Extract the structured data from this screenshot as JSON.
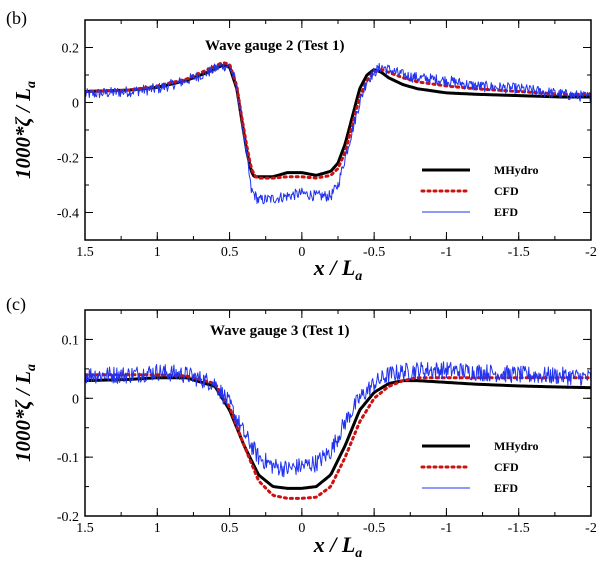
{
  "chart_data": [
    {
      "type": "line",
      "panel_label": "(b)",
      "title": "Wave gauge 2 (Test 1)",
      "xlabel_main": "x / L",
      "xlabel_sub": "a",
      "ylabel_main": "1000*ζ / L",
      "ylabel_sub": "a",
      "xlim": [
        1.5,
        -2
      ],
      "ylim": [
        -0.5,
        0.3
      ],
      "x_ticks": [
        1.5,
        1,
        0.5,
        0,
        -0.5,
        -1,
        -1.5,
        -2
      ],
      "x_tick_labels": [
        "1.5",
        "1",
        "0.5",
        "0",
        "-0.5",
        "-1",
        "-1.5",
        "-2"
      ],
      "y_ticks": [
        -0.4,
        -0.2,
        0,
        0.2
      ],
      "y_tick_labels": [
        "-0.4",
        "-0.2",
        "0",
        "0.2"
      ],
      "legend_position": "lower-right",
      "series": [
        {
          "name": "MHydro",
          "color": "#000000",
          "style": "solid",
          "width": 3,
          "x": [
            1.5,
            1.2,
            1.0,
            0.8,
            0.65,
            0.55,
            0.5,
            0.45,
            0.42,
            0.38,
            0.35,
            0.33,
            0.3,
            0.2,
            0.1,
            0.0,
            -0.1,
            -0.2,
            -0.25,
            -0.3,
            -0.35,
            -0.4,
            -0.45,
            -0.5,
            -0.55,
            -0.6,
            -0.7,
            -0.8,
            -1.0,
            -1.2,
            -1.5,
            -1.8,
            -2.0
          ],
          "y": [
            0.04,
            0.045,
            0.055,
            0.08,
            0.11,
            0.135,
            0.13,
            0.05,
            -0.05,
            -0.18,
            -0.25,
            -0.27,
            -0.27,
            -0.27,
            -0.255,
            -0.255,
            -0.265,
            -0.25,
            -0.22,
            -0.15,
            -0.05,
            0.05,
            0.1,
            0.12,
            0.11,
            0.09,
            0.065,
            0.05,
            0.035,
            0.03,
            0.025,
            0.02,
            0.02
          ]
        },
        {
          "name": "CFD",
          "color": "#cc1111",
          "style": "dotted",
          "width": 3,
          "x": [
            1.5,
            1.2,
            1.0,
            0.8,
            0.65,
            0.55,
            0.5,
            0.45,
            0.42,
            0.38,
            0.35,
            0.32,
            0.3,
            0.2,
            0.1,
            0.0,
            -0.1,
            -0.2,
            -0.25,
            -0.3,
            -0.35,
            -0.4,
            -0.45,
            -0.5,
            -0.55,
            -0.6,
            -0.7,
            -0.8,
            -1.0,
            -1.2,
            -1.5,
            -1.8,
            -2.0
          ],
          "y": [
            0.04,
            0.045,
            0.06,
            0.085,
            0.12,
            0.145,
            0.14,
            0.06,
            -0.04,
            -0.16,
            -0.24,
            -0.27,
            -0.275,
            -0.275,
            -0.27,
            -0.27,
            -0.275,
            -0.265,
            -0.24,
            -0.18,
            -0.08,
            0.02,
            0.08,
            0.11,
            0.12,
            0.11,
            0.09,
            0.075,
            0.06,
            0.05,
            0.04,
            0.03,
            0.03
          ]
        },
        {
          "name": "EFD",
          "color": "#2233ee",
          "style": "noisy",
          "width": 1,
          "noise": 0.02,
          "x": [
            1.5,
            1.2,
            1.0,
            0.8,
            0.65,
            0.55,
            0.5,
            0.46,
            0.42,
            0.38,
            0.35,
            0.3,
            0.2,
            0.1,
            0.0,
            -0.1,
            -0.2,
            -0.25,
            -0.3,
            -0.35,
            -0.4,
            -0.45,
            -0.5,
            -0.55,
            -0.6,
            -0.7,
            -0.8,
            -1.0,
            -1.2,
            -1.5,
            -1.8,
            -2.0
          ],
          "y": [
            0.03,
            0.04,
            0.05,
            0.08,
            0.11,
            0.135,
            0.13,
            0.08,
            -0.05,
            -0.2,
            -0.32,
            -0.355,
            -0.35,
            -0.34,
            -0.33,
            -0.34,
            -0.34,
            -0.3,
            -0.2,
            -0.1,
            0.0,
            0.08,
            0.11,
            0.13,
            0.12,
            0.1,
            0.09,
            0.08,
            0.06,
            0.05,
            0.03,
            0.02
          ]
        }
      ]
    },
    {
      "type": "line",
      "panel_label": "(c)",
      "title": "Wave gauge 3 (Test 1)",
      "xlabel_main": "x / L",
      "xlabel_sub": "a",
      "ylabel_main": "1000*ζ / L",
      "ylabel_sub": "a",
      "xlim": [
        1.5,
        -2
      ],
      "ylim": [
        -0.2,
        0.15
      ],
      "x_ticks": [
        1.5,
        1,
        0.5,
        0,
        -0.5,
        -1,
        -1.5,
        -2
      ],
      "x_tick_labels": [
        "1.5",
        "1",
        "0.5",
        "0",
        "-0.5",
        "-1",
        "-1.5",
        "-2"
      ],
      "y_ticks": [
        -0.2,
        -0.1,
        0,
        0.1
      ],
      "y_tick_labels": [
        "-0.2",
        "-0.1",
        "0",
        "0.1"
      ],
      "legend_position": "lower-right",
      "series": [
        {
          "name": "MHydro",
          "color": "#000000",
          "style": "solid",
          "width": 3,
          "x": [
            1.5,
            1.2,
            1.0,
            0.8,
            0.6,
            0.5,
            0.4,
            0.3,
            0.2,
            0.1,
            0.0,
            -0.1,
            -0.2,
            -0.3,
            -0.4,
            -0.5,
            -0.6,
            -0.7,
            -0.8,
            -1.0,
            -1.2,
            -1.5,
            -1.8,
            -2.0
          ],
          "y": [
            0.03,
            0.032,
            0.035,
            0.035,
            0.02,
            -0.02,
            -0.08,
            -0.13,
            -0.15,
            -0.153,
            -0.153,
            -0.15,
            -0.13,
            -0.08,
            -0.02,
            0.01,
            0.025,
            0.03,
            0.03,
            0.027,
            0.024,
            0.021,
            0.019,
            0.018
          ]
        },
        {
          "name": "CFD",
          "color": "#cc1111",
          "style": "dotted",
          "width": 3,
          "x": [
            1.5,
            1.2,
            1.0,
            0.8,
            0.6,
            0.5,
            0.4,
            0.3,
            0.2,
            0.1,
            0.0,
            -0.1,
            -0.2,
            -0.3,
            -0.4,
            -0.5,
            -0.6,
            -0.7,
            -0.8,
            -1.0,
            -1.2,
            -1.5,
            -1.8,
            -2.0
          ],
          "y": [
            0.04,
            0.04,
            0.04,
            0.038,
            0.025,
            -0.015,
            -0.08,
            -0.14,
            -0.165,
            -0.17,
            -0.17,
            -0.168,
            -0.15,
            -0.1,
            -0.04,
            0.0,
            0.02,
            0.03,
            0.035,
            0.035,
            0.035,
            0.035,
            0.035,
            0.035
          ]
        },
        {
          "name": "EFD",
          "color": "#2233ee",
          "style": "noisy",
          "width": 1,
          "noise": 0.015,
          "x": [
            1.5,
            1.2,
            1.0,
            0.8,
            0.6,
            0.5,
            0.4,
            0.3,
            0.2,
            0.1,
            0.0,
            -0.1,
            -0.2,
            -0.3,
            -0.4,
            -0.5,
            -0.6,
            -0.7,
            -0.8,
            -1.0,
            -1.2,
            -1.5,
            -1.8,
            -2.0
          ],
          "y": [
            0.04,
            0.04,
            0.045,
            0.04,
            0.025,
            -0.01,
            -0.06,
            -0.1,
            -0.115,
            -0.12,
            -0.115,
            -0.11,
            -0.09,
            -0.04,
            0.0,
            0.025,
            0.04,
            0.045,
            0.048,
            0.048,
            0.045,
            0.04,
            0.038,
            0.035
          ]
        }
      ]
    }
  ]
}
